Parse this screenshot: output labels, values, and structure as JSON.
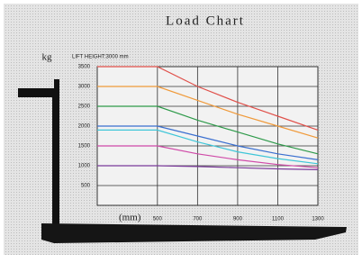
{
  "chart_data": {
    "type": "line",
    "title": "Load Chart",
    "y_label": "kg",
    "x_label": "(mm)",
    "annotation": "LIFT HEIGHT:3000 mm",
    "x": [
      200,
      500,
      700,
      900,
      1100,
      1300
    ],
    "xlim": [
      200,
      1300
    ],
    "ylim": [
      0,
      3500
    ],
    "xticks": [
      500,
      700,
      900,
      1100,
      1300
    ],
    "yticks": [
      500,
      1000,
      1500,
      2000,
      2500,
      3000,
      3500
    ],
    "grid": true,
    "series": [
      {
        "color": "#e0504a",
        "values": [
          3500,
          3500,
          3000,
          2600,
          2250,
          1900
        ]
      },
      {
        "color": "#f09a3a",
        "values": [
          3000,
          3000,
          2650,
          2300,
          2000,
          1700
        ]
      },
      {
        "color": "#2e9a4a",
        "values": [
          2500,
          2500,
          2150,
          1850,
          1550,
          1300
        ]
      },
      {
        "color": "#3a6fd0",
        "values": [
          2000,
          2000,
          1750,
          1500,
          1300,
          1150
        ]
      },
      {
        "color": "#3fc6d8",
        "values": [
          1900,
          1900,
          1600,
          1350,
          1180,
          1050
        ]
      },
      {
        "color": "#d04aa8",
        "values": [
          1500,
          1500,
          1300,
          1150,
          1030,
          950
        ]
      },
      {
        "color": "#7a3a9a",
        "values": [
          1000,
          1000,
          980,
          950,
          920,
          900
        ]
      }
    ]
  }
}
